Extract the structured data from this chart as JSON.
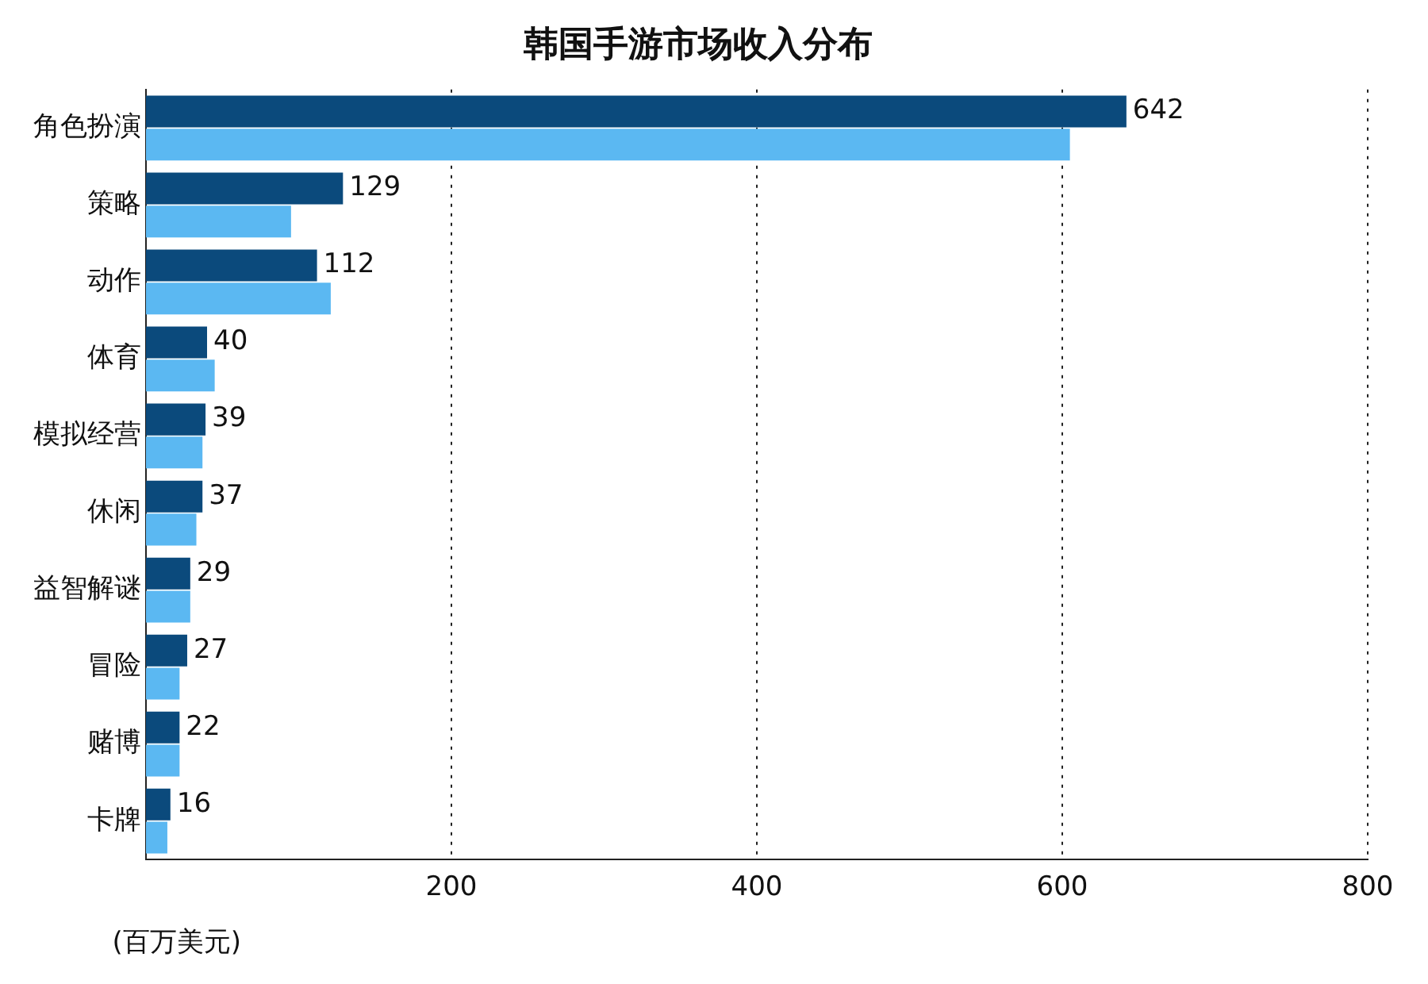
{
  "chart_data": {
    "type": "bar",
    "orientation": "horizontal",
    "title": "韩国手游市场收入分布",
    "xlabel": "(百万美元)",
    "categories": [
      "角色扮演",
      "策略",
      "动作",
      "体育",
      "模拟经营",
      "休闲",
      "益智解谜",
      "冒险",
      "赌博",
      "卡牌"
    ],
    "series": [
      {
        "color": "#0b4a7c",
        "values": [
          642,
          129,
          112,
          40,
          39,
          37,
          29,
          27,
          22,
          16
        ],
        "value_labels": [
          "642",
          "129",
          "112",
          "40",
          "39",
          "37",
          "29",
          "27",
          "22",
          "16"
        ]
      },
      {
        "color": "#5bb8f2",
        "values": [
          605,
          95,
          121,
          45,
          37,
          33,
          29,
          22,
          22,
          14
        ]
      }
    ],
    "xlim": [
      0,
      800
    ],
    "xticks": [
      200,
      400,
      600,
      800
    ],
    "grid": "x",
    "legend": false
  }
}
